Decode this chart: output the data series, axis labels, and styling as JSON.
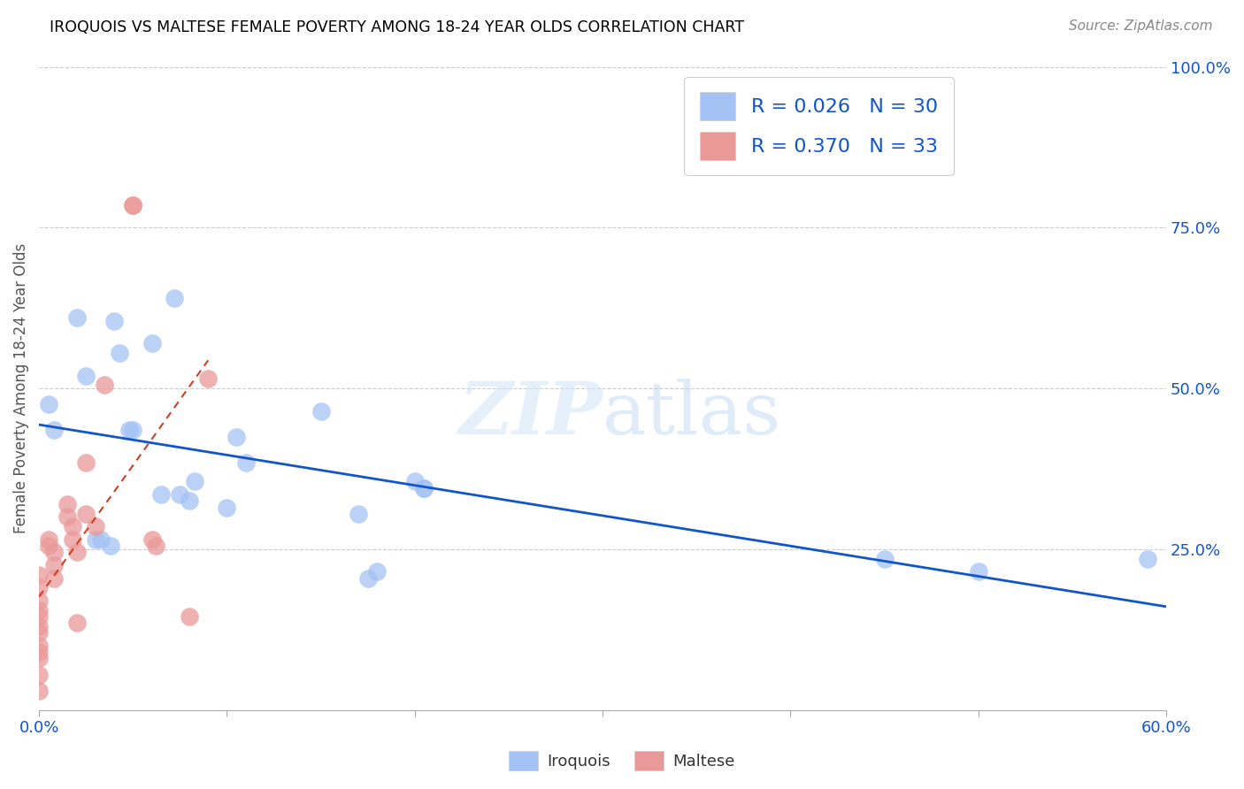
{
  "title": "IROQUOIS VS MALTESE FEMALE POVERTY AMONG 18-24 YEAR OLDS CORRELATION CHART",
  "source": "Source: ZipAtlas.com",
  "ylabel": "Female Poverty Among 18-24 Year Olds",
  "xlim": [
    0.0,
    0.6
  ],
  "ylim": [
    0.0,
    1.0
  ],
  "xticks": [
    0.0,
    0.1,
    0.2,
    0.3,
    0.4,
    0.5,
    0.6
  ],
  "xticklabels": [
    "0.0%",
    "",
    "",
    "",
    "",
    "",
    "60.0%"
  ],
  "yticks_right": [
    0.25,
    0.5,
    0.75,
    1.0
  ],
  "yticklabels_right": [
    "25.0%",
    "50.0%",
    "75.0%",
    "100.0%"
  ],
  "watermark": "ZIPatlas",
  "iroquois_color": "#a4c2f4",
  "maltese_color": "#ea9999",
  "iroquois_line_color": "#1155cc",
  "maltese_line_color": "#cc4125",
  "R_iroquois": 0.026,
  "N_iroquois": 30,
  "R_maltese": 0.37,
  "N_maltese": 33,
  "legend_text_color": "#1155cc",
  "iroquois_scatter_x": [
    0.005,
    0.008,
    0.02,
    0.025,
    0.03,
    0.033,
    0.038,
    0.04,
    0.043,
    0.048,
    0.05,
    0.06,
    0.065,
    0.072,
    0.075,
    0.08,
    0.083,
    0.1,
    0.105,
    0.11,
    0.15,
    0.17,
    0.175,
    0.18,
    0.2,
    0.205,
    0.205,
    0.45,
    0.5,
    0.59
  ],
  "iroquois_scatter_y": [
    0.475,
    0.435,
    0.61,
    0.52,
    0.265,
    0.265,
    0.255,
    0.605,
    0.555,
    0.435,
    0.435,
    0.57,
    0.335,
    0.64,
    0.335,
    0.325,
    0.355,
    0.315,
    0.425,
    0.385,
    0.465,
    0.305,
    0.205,
    0.215,
    0.355,
    0.345,
    0.345,
    0.235,
    0.215,
    0.235
  ],
  "maltese_scatter_x": [
    0.0,
    0.0,
    0.0,
    0.0,
    0.0,
    0.0,
    0.0,
    0.0,
    0.0,
    0.0,
    0.0,
    0.0,
    0.005,
    0.005,
    0.008,
    0.008,
    0.008,
    0.015,
    0.015,
    0.018,
    0.018,
    0.02,
    0.02,
    0.025,
    0.025,
    0.03,
    0.035,
    0.05,
    0.05,
    0.06,
    0.062,
    0.08,
    0.09
  ],
  "maltese_scatter_y": [
    0.21,
    0.19,
    0.17,
    0.155,
    0.145,
    0.13,
    0.12,
    0.1,
    0.09,
    0.08,
    0.055,
    0.03,
    0.265,
    0.255,
    0.245,
    0.225,
    0.205,
    0.32,
    0.3,
    0.285,
    0.265,
    0.245,
    0.135,
    0.385,
    0.305,
    0.285,
    0.505,
    0.785,
    0.785,
    0.265,
    0.255,
    0.145,
    0.515
  ],
  "maltese_trendline_x": [
    0.0,
    0.09
  ],
  "background_color": "#ffffff",
  "grid_color": "#cccccc",
  "title_color": "#000000",
  "axis_label_color": "#555555",
  "right_tick_color": "#1155cc",
  "bottom_tick_color": "#1155cc"
}
